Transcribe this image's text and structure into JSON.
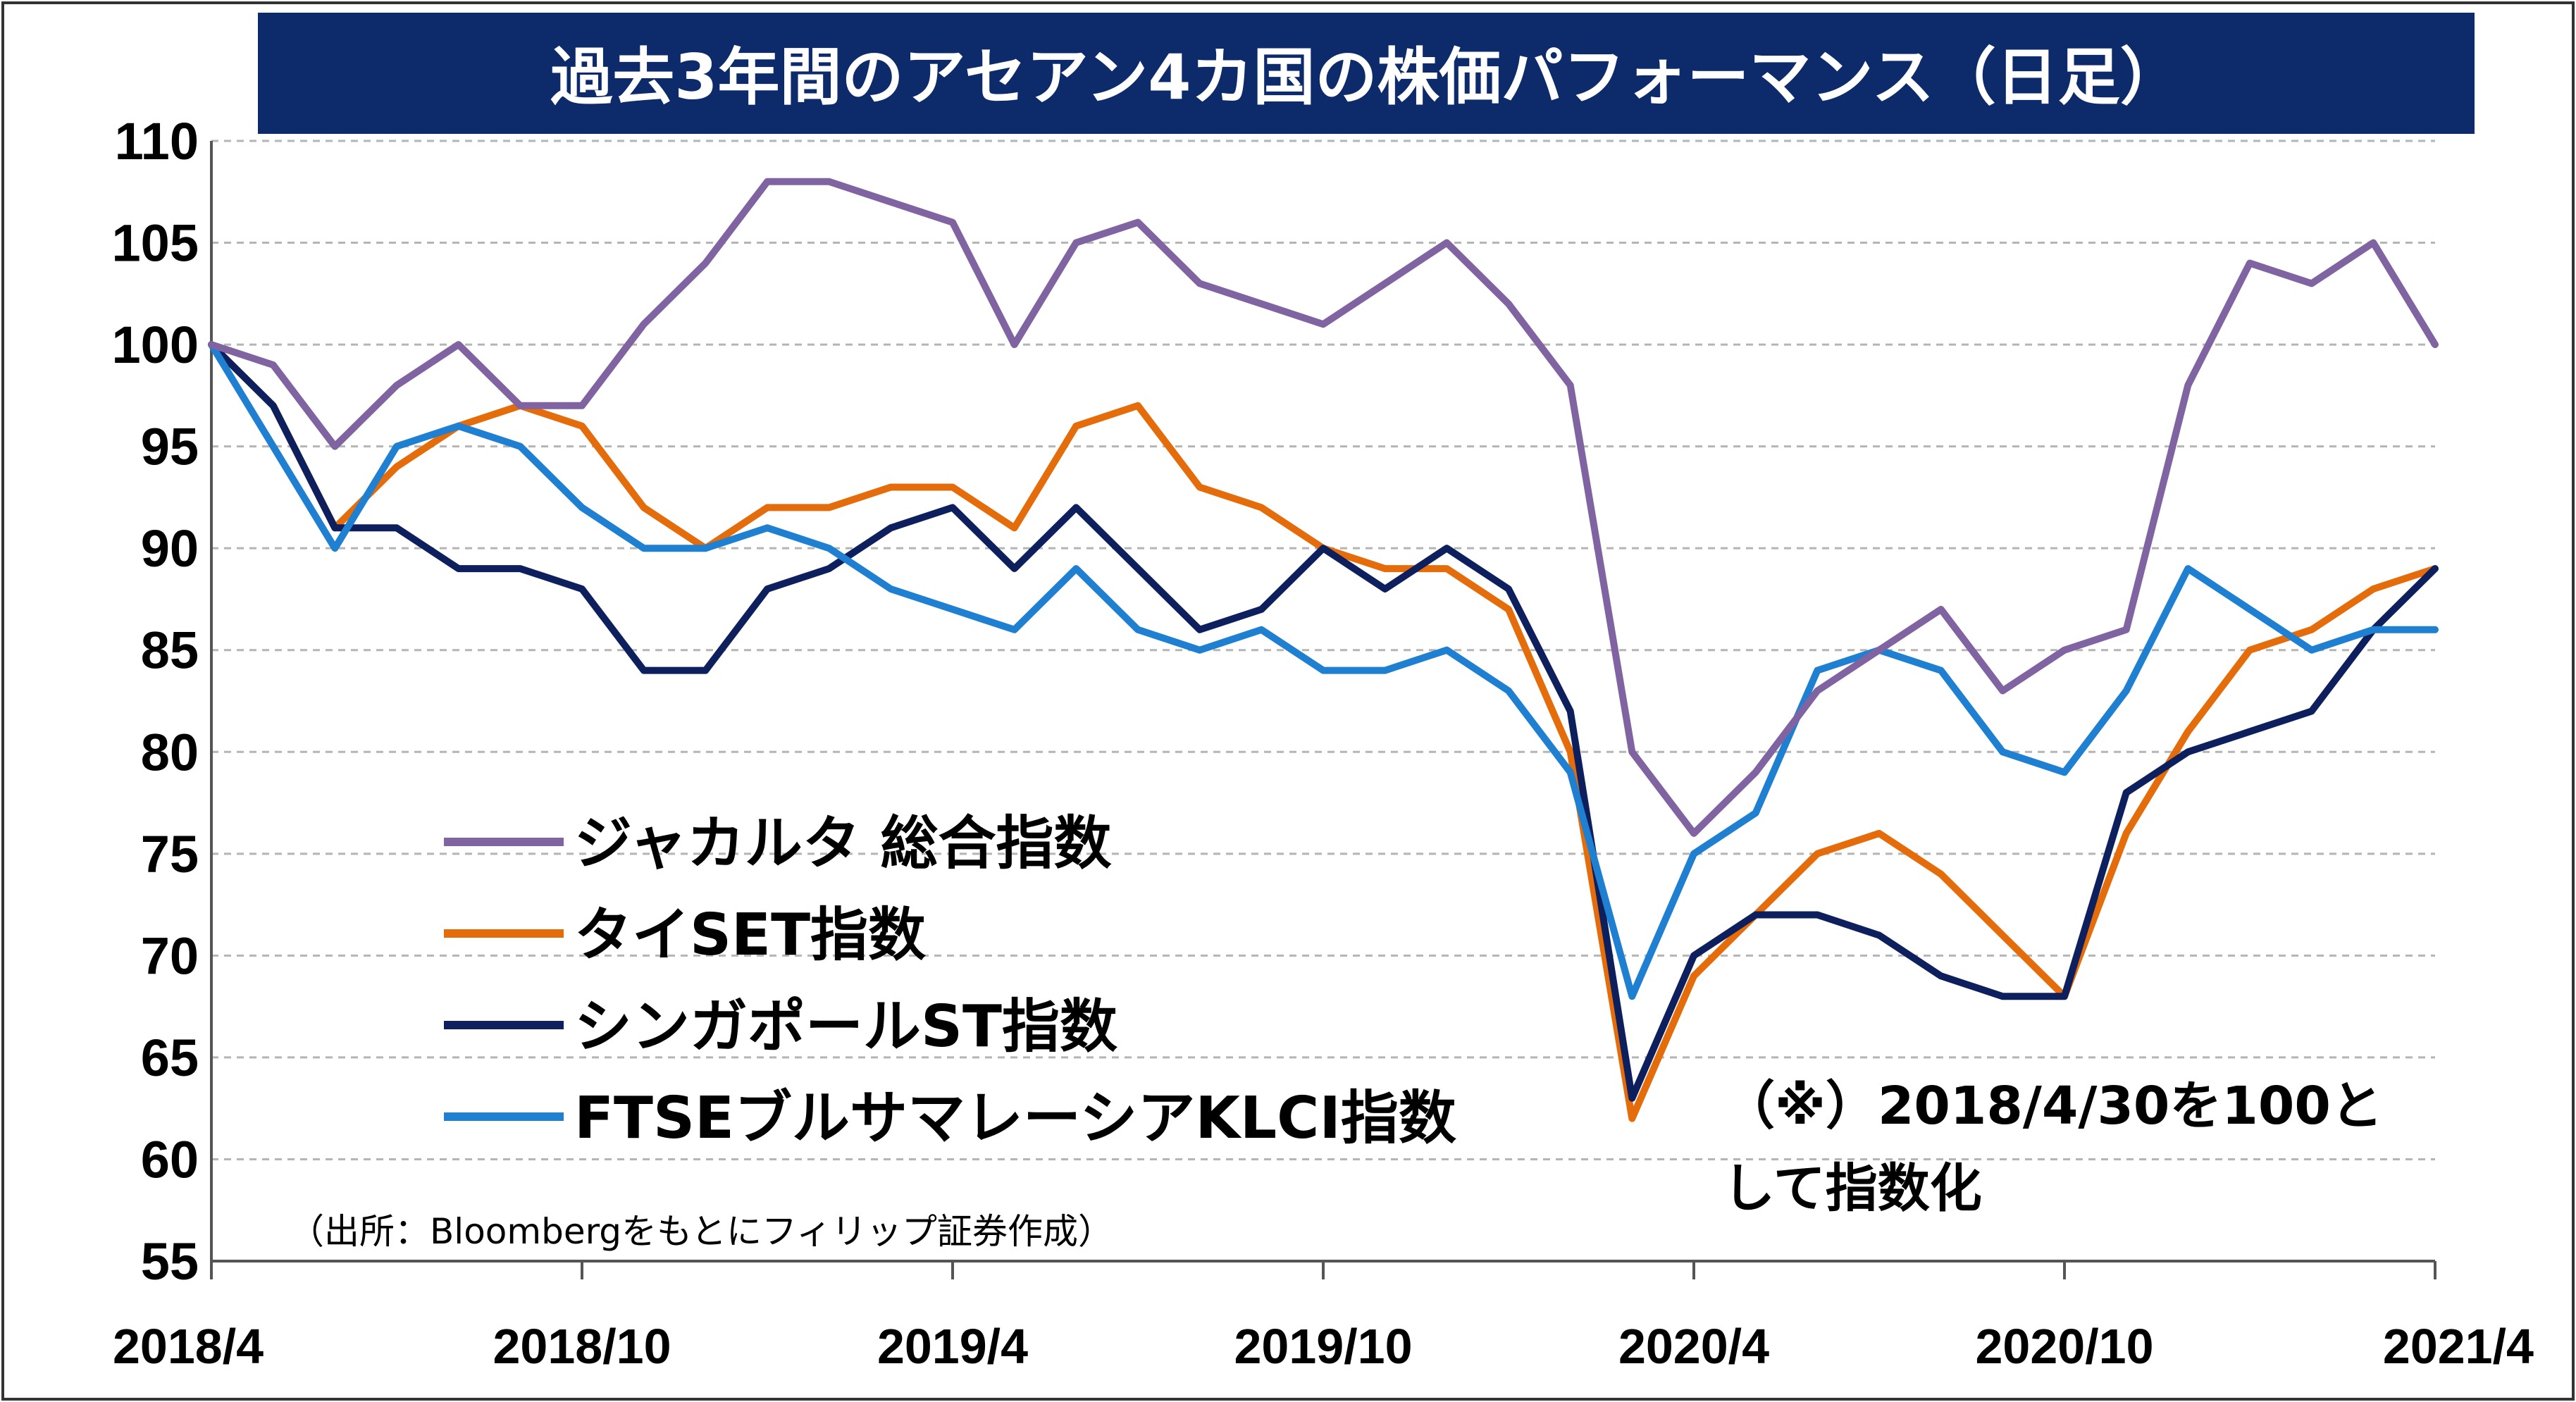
{
  "chart_data": {
    "type": "line",
    "title": "過去3年間のアセアン4カ国の株価パフォーマンス（日足）",
    "x_ticks": [
      "2018/4",
      "2018/10",
      "2019/4",
      "2019/10",
      "2020/4",
      "2020/10",
      "2021/4"
    ],
    "y_ticks": [
      "110",
      "105",
      "100",
      "95",
      "90",
      "85",
      "80",
      "75",
      "70",
      "65",
      "60",
      "55"
    ],
    "ylim": [
      55,
      110
    ],
    "grid": true,
    "legend_position": "lower-left",
    "note": "（※）2018/4/30を100として指数化",
    "source": "（出所：Bloombergをもとにフィリップ証券作成）",
    "x": [
      "2018/4",
      "2018/5",
      "2018/6",
      "2018/7",
      "2018/8",
      "2018/9",
      "2018/10",
      "2018/11",
      "2018/12",
      "2019/1",
      "2019/2",
      "2019/3",
      "2019/4",
      "2019/5",
      "2019/6",
      "2019/7",
      "2019/8",
      "2019/9",
      "2019/10",
      "2019/11",
      "2019/12",
      "2020/1",
      "2020/2",
      "2020/3",
      "2020/4",
      "2020/5",
      "2020/6",
      "2020/7",
      "2020/8",
      "2020/9",
      "2020/10",
      "2020/11",
      "2020/12",
      "2021/1",
      "2021/2",
      "2021/3",
      "2021/4"
    ],
    "series": [
      {
        "name": "ジャカルタ 総合指数",
        "color": "#8064a2",
        "values": [
          100,
          99,
          95,
          98,
          100,
          97,
          97,
          101,
          104,
          108,
          108,
          107,
          106,
          100,
          105,
          106,
          103,
          102,
          101,
          103,
          105,
          102,
          98,
          80,
          76,
          79,
          83,
          85,
          87,
          83,
          85,
          86,
          98,
          104,
          103,
          105,
          100
        ]
      },
      {
        "name": "タイSET指数",
        "color": "#e46c0a",
        "values": [
          100,
          97,
          91,
          94,
          96,
          97,
          96,
          92,
          90,
          92,
          92,
          93,
          93,
          91,
          96,
          97,
          93,
          92,
          90,
          89,
          89,
          87,
          80,
          62,
          69,
          72,
          75,
          76,
          74,
          71,
          68,
          76,
          81,
          85,
          86,
          88,
          89
        ]
      },
      {
        "name": "シンガポールST指数",
        "color": "#0d1f5c",
        "values": [
          100,
          97,
          91,
          91,
          89,
          89,
          88,
          84,
          84,
          88,
          89,
          91,
          92,
          89,
          92,
          89,
          86,
          87,
          90,
          88,
          90,
          88,
          82,
          63,
          70,
          72,
          72,
          71,
          69,
          68,
          68,
          78,
          80,
          81,
          82,
          86,
          89
        ]
      },
      {
        "name": "FTSEブルサマレーシアKLCI指数",
        "color": "#1f7fd1",
        "values": [
          100,
          95,
          90,
          95,
          96,
          95,
          92,
          90,
          90,
          91,
          90,
          88,
          87,
          86,
          89,
          86,
          85,
          86,
          84,
          84,
          85,
          83,
          79,
          68,
          75,
          77,
          84,
          85,
          84,
          80,
          79,
          83,
          89,
          87,
          85,
          86,
          86
        ]
      }
    ]
  }
}
